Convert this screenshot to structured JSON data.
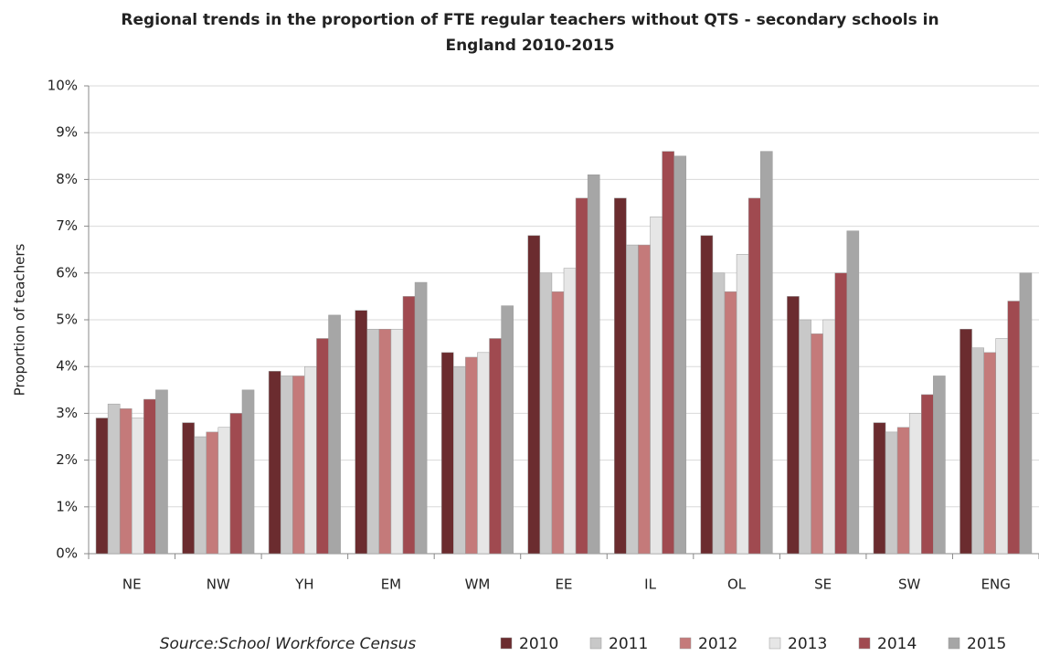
{
  "chart_data": {
    "type": "bar",
    "title": "Regional trends in the proportion of FTE regular teachers without QTS - secondary schools in England  2010-2015",
    "y_label": "Proportion of teachers",
    "annotation": "Source:School Workforce Census",
    "categories": [
      "NE",
      "NW",
      "YH",
      "EM",
      "WM",
      "EE",
      "IL",
      "OL",
      "SE",
      "SW",
      "ENG"
    ],
    "series": [
      {
        "name": "2010",
        "color": "#6b2c2f",
        "values": [
          2.9,
          2.8,
          3.9,
          5.2,
          4.3,
          6.8,
          7.6,
          6.8,
          5.5,
          2.8,
          4.8
        ]
      },
      {
        "name": "2011",
        "color": "#c8c8c8",
        "values": [
          3.2,
          2.5,
          3.8,
          4.8,
          4.0,
          6.0,
          6.6,
          6.0,
          5.0,
          2.6,
          4.4
        ]
      },
      {
        "name": "2012",
        "color": "#c47a7a",
        "values": [
          3.1,
          2.6,
          3.8,
          4.8,
          4.2,
          5.6,
          6.6,
          5.6,
          4.7,
          2.7,
          4.3
        ]
      },
      {
        "name": "2013",
        "color": "#e6e6e6",
        "values": [
          2.9,
          2.7,
          4.0,
          4.8,
          4.3,
          6.1,
          7.2,
          6.4,
          5.0,
          3.0,
          4.6
        ]
      },
      {
        "name": "2014",
        "color": "#a04a50",
        "values": [
          3.3,
          3.0,
          4.6,
          5.5,
          4.6,
          7.6,
          8.6,
          7.6,
          6.0,
          3.4,
          5.4
        ]
      },
      {
        "name": "2015",
        "color": "#a6a6a6",
        "values": [
          3.5,
          3.5,
          5.1,
          5.8,
          5.3,
          8.1,
          8.5,
          8.6,
          6.9,
          3.8,
          6.0
        ]
      }
    ],
    "ylim": [
      0,
      10
    ],
    "yticks": [
      {
        "value": 0,
        "label": "0%"
      },
      {
        "value": 1,
        "label": "1%"
      },
      {
        "value": 2,
        "label": "2%"
      },
      {
        "value": 3,
        "label": "3%"
      },
      {
        "value": 4,
        "label": "4%"
      },
      {
        "value": 5,
        "label": "5%"
      },
      {
        "value": 6,
        "label": "6%"
      },
      {
        "value": 7,
        "label": "7%"
      },
      {
        "value": 8,
        "label": "8%"
      },
      {
        "value": 9,
        "label": "9%"
      },
      {
        "value": 10,
        "label": "10%"
      }
    ],
    "grid": true
  }
}
